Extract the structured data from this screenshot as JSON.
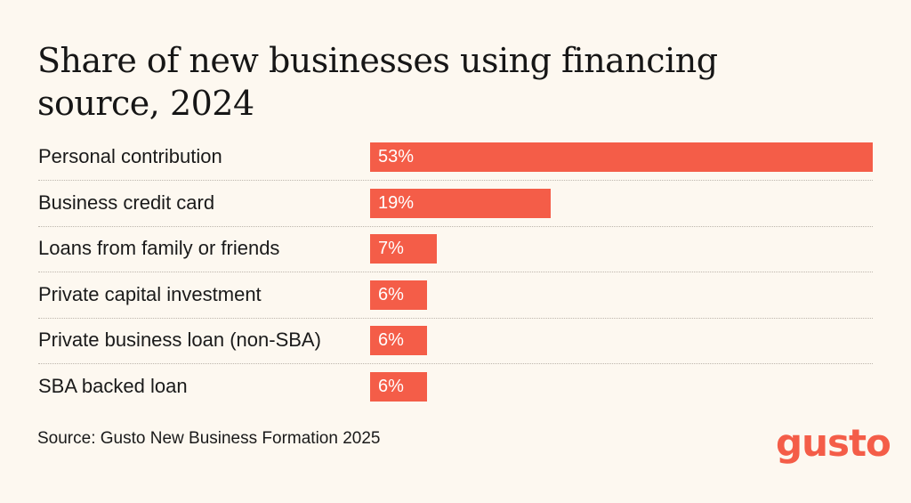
{
  "chart_data": {
    "type": "bar",
    "orientation": "horizontal",
    "title": "Share of new businesses using financing source, 2024",
    "categories": [
      "Personal contribution",
      "Business credit card",
      "Loans from family or friends",
      "Private capital investment",
      "Private business loan (non-SBA)",
      "SBA backed loan"
    ],
    "values": [
      53,
      19,
      7,
      6,
      6,
      6
    ],
    "value_labels": [
      "53%",
      "19%",
      "7%",
      "6%",
      "6%",
      "6%"
    ],
    "value_suffix": "%",
    "xlim": [
      0,
      53
    ],
    "bar_color": "#f45d48",
    "grid": false,
    "legend": "none",
    "source": "Source: Gusto New Business Formation 2025"
  },
  "brand": {
    "logo_text": "gusto",
    "color": "#f45d48"
  },
  "colors": {
    "background": "#fdf8f0",
    "text": "#161616"
  }
}
